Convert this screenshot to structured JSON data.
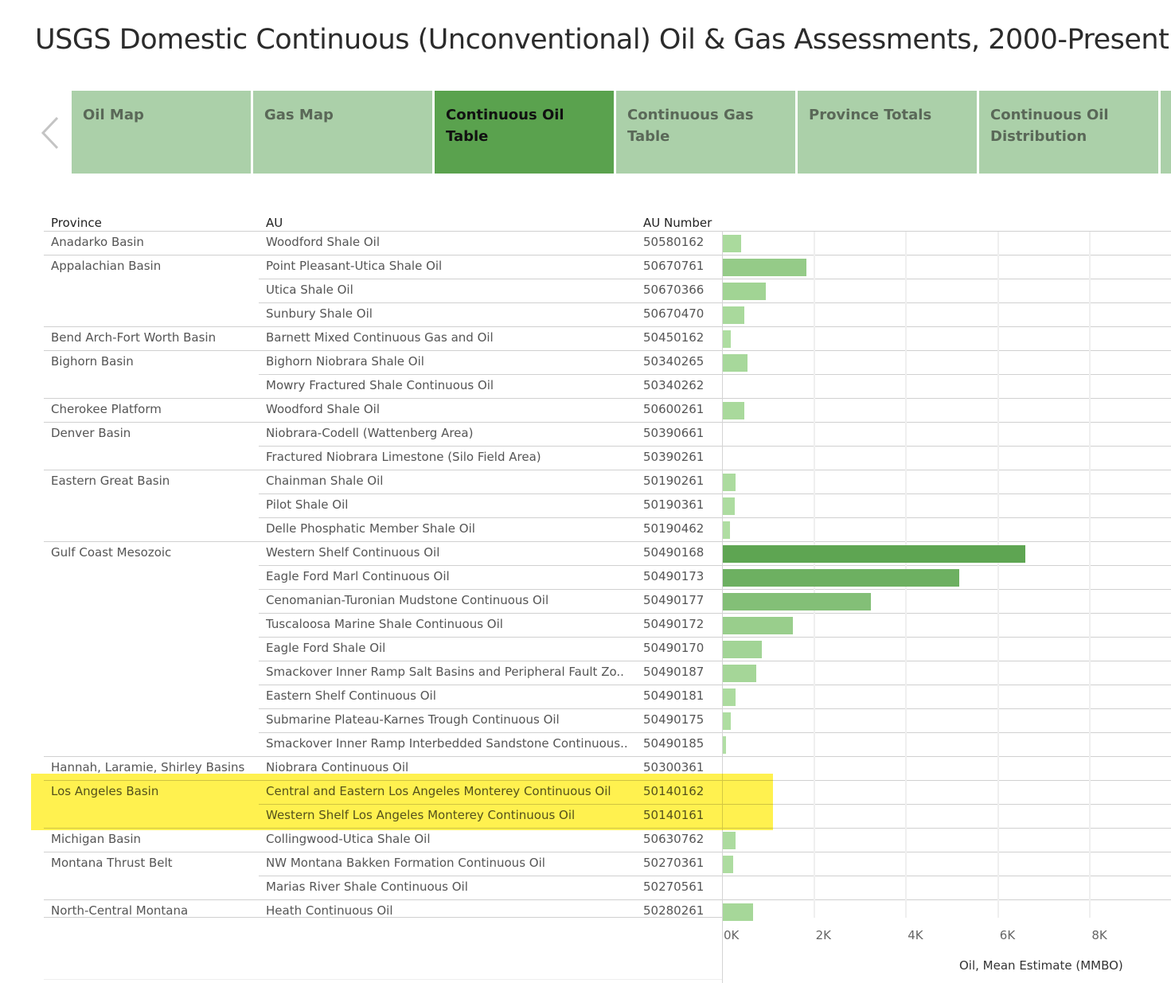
{
  "title": "USGS Domestic Continuous (Unconventional) Oil & Gas Assessments, 2000-Present",
  "nav": {
    "prev_icon": "chevron-left-icon",
    "tabs": [
      {
        "label": "Oil Map",
        "active": false
      },
      {
        "label": "Gas Map",
        "active": false
      },
      {
        "label": "Continuous Oil Table",
        "active": true
      },
      {
        "label": "Continuous Gas Table",
        "active": false
      },
      {
        "label": "Province Totals",
        "active": false
      },
      {
        "label": "Continuous Oil Distribution",
        "active": false
      },
      {
        "label": "",
        "active": false
      }
    ]
  },
  "colors": {
    "tab_inactive": "#abd0a9",
    "tab_active": "#5aa24e",
    "bar_low": "#b3e0a6",
    "bar_high": "#5ea552",
    "highlight": "#fff03c"
  },
  "table": {
    "headers": {
      "province": "Province",
      "au": "AU",
      "au_number": "AU Number"
    },
    "rows": [
      {
        "province": "Anadarko Basin",
        "au": "Woodford Shale Oil",
        "au_number": "50580162",
        "oil": 390
      },
      {
        "province": "Appalachian Basin",
        "au": "Point Pleasant-Utica Shale Oil",
        "au_number": "50670761",
        "oil": 1810
      },
      {
        "province": "",
        "au": "Utica Shale Oil",
        "au_number": "50670366",
        "oil": 930
      },
      {
        "province": "",
        "au": "Sunbury Shale Oil",
        "au_number": "50670470",
        "oil": 465
      },
      {
        "province": "Bend Arch-Fort Worth Basin",
        "au": "Barnett Mixed Continuous Gas and Oil",
        "au_number": "50450162",
        "oil": 180
      },
      {
        "province": "Bighorn Basin",
        "au": "Bighorn Niobrara Shale Oil",
        "au_number": "50340265",
        "oil": 540
      },
      {
        "province": "",
        "au": "Mowry Fractured Shale Continuous Oil",
        "au_number": "50340262",
        "oil": 0
      },
      {
        "province": "Cherokee Platform",
        "au": "Woodford Shale Oil",
        "au_number": "50600261",
        "oil": 465
      },
      {
        "province": "Denver Basin",
        "au": "Niobrara-Codell (Wattenberg Area)",
        "au_number": "50390661",
        "oil": 0
      },
      {
        "province": "",
        "au": "Fractured Niobrara Limestone (Silo Field Area)",
        "au_number": "50390261",
        "oil": 0
      },
      {
        "province": "Eastern Great Basin",
        "au": "Chainman Shale Oil",
        "au_number": "50190261",
        "oil": 280
      },
      {
        "province": "",
        "au": "Pilot Shale Oil",
        "au_number": "50190361",
        "oil": 260
      },
      {
        "province": "",
        "au": "Delle Phosphatic Member Shale Oil",
        "au_number": "50190462",
        "oil": 150
      },
      {
        "province": "Gulf Coast Mesozoic",
        "au": "Western Shelf Continuous Oil",
        "au_number": "50490168",
        "oil": 6570
      },
      {
        "province": "",
        "au": "Eagle Ford Marl Continuous Oil",
        "au_number": "50490173",
        "oil": 5140
      },
      {
        "province": "",
        "au": "Cenomanian-Turonian Mudstone Continuous Oil",
        "au_number": "50490177",
        "oil": 3220
      },
      {
        "province": "",
        "au": "Tuscaloosa Marine Shale Continuous Oil",
        "au_number": "50490172",
        "oil": 1520
      },
      {
        "province": "",
        "au": "Eagle Ford Shale Oil",
        "au_number": "50490170",
        "oil": 855
      },
      {
        "province": "",
        "au": "Smackover Inner Ramp Salt Basins and Peripheral Fault Zo..",
        "au_number": "50490187",
        "oil": 720
      },
      {
        "province": "",
        "au": "Eastern Shelf Continuous Oil",
        "au_number": "50490181",
        "oil": 280
      },
      {
        "province": "",
        "au": "Submarine Plateau-Karnes Trough Continuous Oil",
        "au_number": "50490175",
        "oil": 175
      },
      {
        "province": "",
        "au": "Smackover Inner Ramp Interbedded Sandstone Continuous..",
        "au_number": "50490185",
        "oil": 75
      },
      {
        "province": "Hannah, Laramie, Shirley Basins",
        "au": "Niobrara Continuous Oil",
        "au_number": "50300361",
        "oil": 0
      },
      {
        "province": "Los Angeles Basin",
        "au": "Central and Eastern Los Angeles Monterey Continuous Oil",
        "au_number": "50140162",
        "oil": 0,
        "highlighted": true
      },
      {
        "province": "",
        "au": "Western Shelf Los Angeles Monterey Continuous Oil",
        "au_number": "50140161",
        "oil": 0,
        "highlighted": true
      },
      {
        "province": "Michigan Basin",
        "au": "Collingwood-Utica Shale Oil",
        "au_number": "50630762",
        "oil": 280
      },
      {
        "province": "Montana Thrust Belt",
        "au": "NW Montana Bakken Formation Continuous Oil",
        "au_number": "50270361",
        "oil": 230
      },
      {
        "province": "",
        "au": "Marias River Shale Continuous Oil",
        "au_number": "50270561",
        "oil": 0
      },
      {
        "province": "North-Central Montana",
        "au": "Heath Continuous Oil",
        "au_number": "50280261",
        "oil": 650
      }
    ]
  },
  "chart_data": {
    "type": "bar",
    "orientation": "horizontal",
    "xlabel": "Oil, Mean Estimate (MMBO)",
    "xlim": [
      0,
      9700
    ],
    "ticks": [
      {
        "value": 0,
        "label": "0K"
      },
      {
        "value": 2000,
        "label": "2K"
      },
      {
        "value": 4000,
        "label": "4K"
      },
      {
        "value": 6000,
        "label": "6K"
      },
      {
        "value": 8000,
        "label": "8K"
      }
    ],
    "grid": true,
    "color_encoding": "sequential green by value"
  }
}
